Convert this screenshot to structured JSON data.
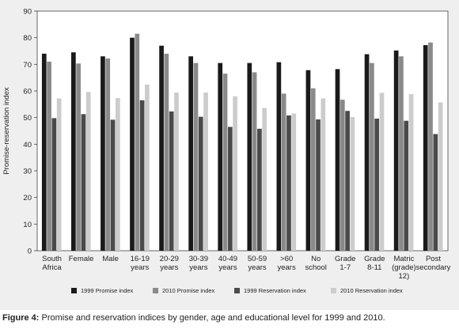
{
  "chart_data": {
    "type": "bar",
    "ylabel": "Promise-reservation index",
    "xlabel": "",
    "ylim": [
      0,
      90
    ],
    "yticks": [
      0,
      10,
      20,
      30,
      40,
      50,
      60,
      70,
      80,
      90
    ],
    "grid": false,
    "legend": "bottom",
    "categories": [
      [
        "South",
        "Africa"
      ],
      [
        "Female"
      ],
      [
        "Male"
      ],
      [
        "16-19",
        "years"
      ],
      [
        "20-29",
        "years"
      ],
      [
        "30-39",
        "years"
      ],
      [
        "40-49",
        "years"
      ],
      [
        "50-59",
        "years"
      ],
      [
        ">60",
        "years"
      ],
      [
        "No",
        "school"
      ],
      [
        "Grade",
        "1-7"
      ],
      [
        "Grade",
        "8-11"
      ],
      [
        "Matric",
        "(grade)",
        "12)"
      ],
      [
        "Post",
        "secondary"
      ]
    ],
    "series": [
      {
        "name": "1999 Promise index",
        "color": "#1a1a1a",
        "values": [
          74,
          74.5,
          73,
          80,
          77,
          73,
          70.5,
          70.5,
          70.8,
          67.8,
          68.2,
          73.8,
          75.2,
          77.2
        ]
      },
      {
        "name": "2010 Promise index",
        "color": "#8a8a8a",
        "values": [
          71,
          70.3,
          72.2,
          81.5,
          74,
          70.5,
          66.5,
          67,
          59,
          61,
          56.7,
          70.5,
          73,
          78.2
        ]
      },
      {
        "name": "1999 Reservation index",
        "color": "#4a4a4a",
        "values": [
          49.8,
          51.3,
          49.2,
          56.5,
          52.3,
          50.3,
          46.5,
          45.8,
          50.8,
          49.3,
          52.5,
          49.6,
          48.8,
          43.8
        ]
      },
      {
        "name": "2010 Reservation index",
        "color": "#cccccc",
        "values": [
          57.2,
          59.6,
          57.3,
          62.4,
          59.4,
          59.4,
          58,
          53.6,
          51.5,
          57.2,
          50.2,
          59.3,
          58.8,
          55.7
        ]
      }
    ]
  },
  "caption": {
    "label": "Figure 4:",
    "text": " Promise and reservation indices by gender, age and educational level for 1999 and 2010."
  }
}
